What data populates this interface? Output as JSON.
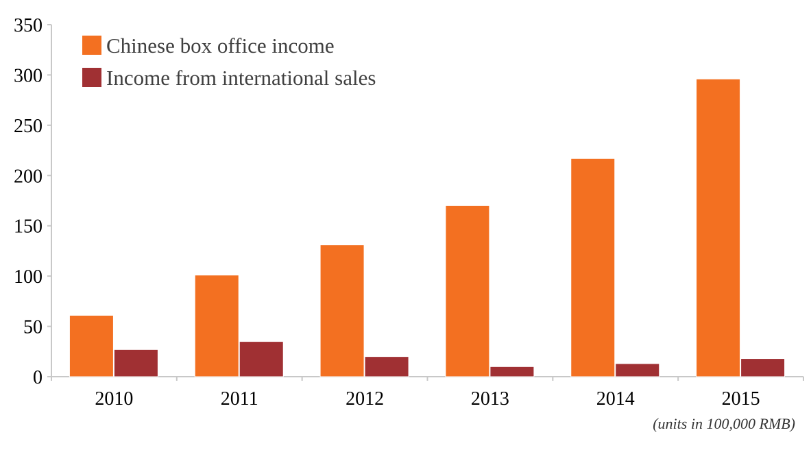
{
  "chart_data": {
    "type": "bar",
    "categories": [
      "2010",
      "2011",
      "2012",
      "2013",
      "2014",
      "2015"
    ],
    "series": [
      {
        "name": "Chinese box office income",
        "color": "#F37021",
        "values": [
          61,
          101,
          131,
          170,
          217,
          296
        ]
      },
      {
        "name": "Income from international sales",
        "color": "#A03033",
        "values": [
          27,
          35,
          20,
          10,
          13,
          18
        ]
      }
    ],
    "ylim": [
      0,
      350
    ],
    "yticks": [
      "0",
      "50",
      "100",
      "150",
      "200",
      "250",
      "300",
      "350"
    ],
    "xlabel": "",
    "ylabel": "",
    "grid": false,
    "legend_position": "top-left",
    "note": "(units in 100,000 RMB)"
  }
}
